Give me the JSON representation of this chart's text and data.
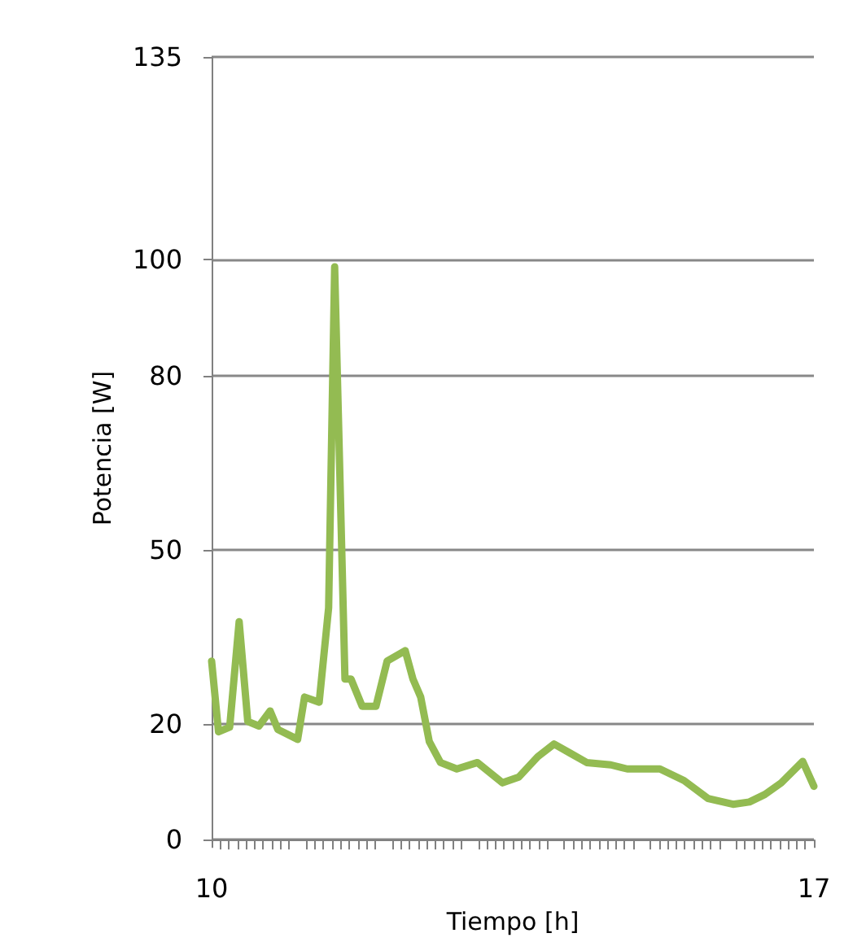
{
  "chart_data": {
    "type": "line",
    "xlabel": "Tiempo [h]",
    "ylabel": "Potencia [W]",
    "x": [
      10,
      10.08,
      10.21,
      10.32,
      10.42,
      10.55,
      10.68,
      10.77,
      11.0,
      11.08,
      11.25,
      11.36,
      11.43,
      11.55,
      11.62,
      11.75,
      11.91,
      12.04,
      12.25,
      12.34,
      12.43,
      12.53,
      12.66,
      12.85,
      13.09,
      13.38,
      13.57,
      13.79,
      13.98,
      14.17,
      14.36,
      14.64,
      14.83,
      15.21,
      15.49,
      15.77,
      16.06,
      16.25,
      16.43,
      16.62,
      16.87,
      17
    ],
    "series": [
      {
        "color": "#93bb52",
        "values": [
          30.8,
          18.6,
          19.4,
          37.6,
          20.4,
          19.6,
          22.2,
          19,
          17.3,
          24.6,
          23.7,
          40,
          98.8,
          27.7,
          27.7,
          23,
          23,
          30.8,
          32.6,
          27.7,
          24.6,
          16.9,
          13.3,
          12.2,
          13.3,
          9.8,
          10.8,
          14.3,
          16.5,
          14.9,
          13.3,
          12.9,
          12.2,
          12.2,
          10.2,
          7.1,
          6.1,
          6.5,
          7.8,
          9.8,
          13.5,
          9.2
        ]
      }
    ],
    "xlim": [
      10,
      17
    ],
    "xticks": [
      10,
      17
    ],
    "ylim": [
      0,
      135
    ],
    "yticks": [
      0,
      20,
      50,
      80,
      100,
      135
    ],
    "grid": "y",
    "marker": "none",
    "line_style": "solid"
  }
}
